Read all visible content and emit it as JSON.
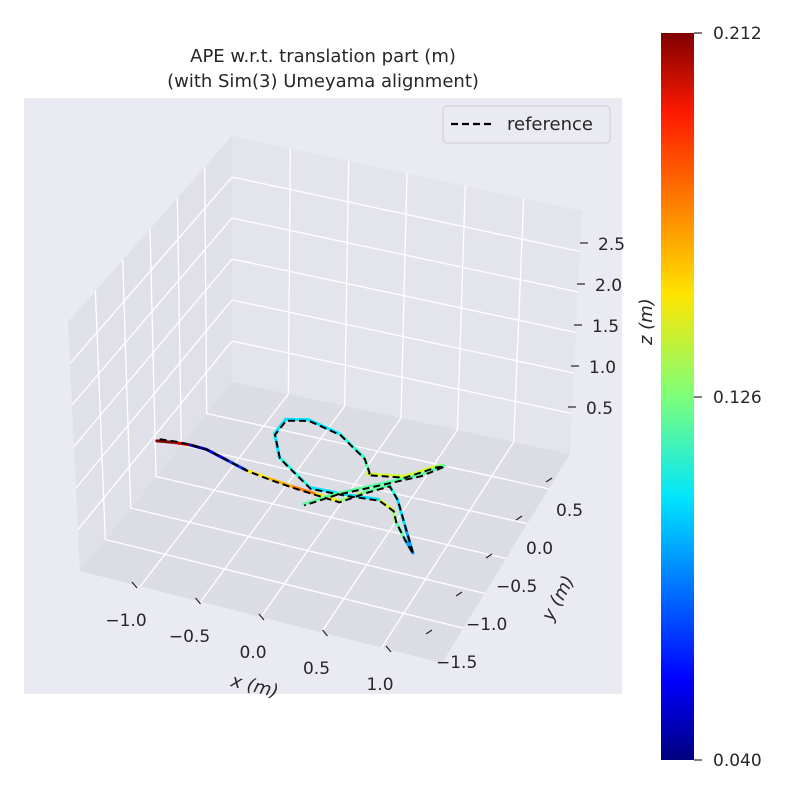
{
  "chart_data": {
    "type": "line",
    "projection": "3d",
    "title": [
      "APE w.r.t. translation part (m)",
      "(with Sim(3) Umeyama alignment)"
    ],
    "xlabel": "x (m)",
    "ylabel": "y (m)",
    "zlabel": "z (m)",
    "x_ticks": [
      "−1.0",
      "−0.5",
      "0.0",
      "0.5",
      "1.0"
    ],
    "y_ticks": [
      "0.5",
      "0.0",
      "−0.5",
      "−1.0",
      "−1.5"
    ],
    "z_ticks": [
      "2.5",
      "2.0",
      "1.5",
      "1.0",
      "0.5"
    ],
    "xlim": [
      -1.5,
      1.3
    ],
    "ylim": [
      -1.8,
      0.9
    ],
    "zlim": [
      0.3,
      2.8
    ],
    "legend": {
      "label": "reference",
      "style": "dashed",
      "color": "#000000",
      "placement": "top-right"
    },
    "colorbar": {
      "min": 0.04,
      "max": 0.212,
      "tick_labels": [
        "0.212",
        "0.126",
        "0.040"
      ],
      "colormap": "jet",
      "label": ""
    },
    "grid": true,
    "background": "#eaeaf2",
    "series": [
      {
        "role": "estimate",
        "colored_by": "APE",
        "points": [
          [
            -1.45,
            -0.35,
            0.75,
            0.212
          ],
          [
            -1.3,
            -0.3,
            0.82,
            0.2
          ],
          [
            -1.15,
            -0.25,
            0.88,
            0.05
          ],
          [
            -1.0,
            -0.2,
            0.92,
            0.06
          ],
          [
            -0.8,
            -0.1,
            0.95,
            0.07
          ],
          [
            -0.6,
            0.0,
            0.98,
            0.15
          ],
          [
            -0.4,
            0.05,
            1.0,
            0.16
          ],
          [
            -0.2,
            0.1,
            1.02,
            0.17
          ],
          [
            0.0,
            0.15,
            1.05,
            0.15
          ],
          [
            0.2,
            0.2,
            1.08,
            0.13
          ],
          [
            0.35,
            0.1,
            1.15,
            0.12
          ],
          [
            0.5,
            0.0,
            1.2,
            0.11
          ],
          [
            0.65,
            0.2,
            1.25,
            0.1
          ],
          [
            0.8,
            0.4,
            1.15,
            0.09
          ],
          [
            0.9,
            0.5,
            1.0,
            0.09
          ],
          [
            0.75,
            0.3,
            0.95,
            0.12
          ],
          [
            0.55,
            0.0,
            0.85,
            0.13
          ],
          [
            0.4,
            -0.3,
            0.7,
            0.14
          ],
          [
            0.2,
            -0.5,
            0.6,
            0.1
          ],
          [
            0.0,
            -0.4,
            0.65,
            0.1
          ],
          [
            -0.2,
            -0.2,
            0.8,
            0.11
          ],
          [
            -0.35,
            0.0,
            1.2,
            0.1
          ],
          [
            -0.3,
            0.2,
            1.6,
            0.1
          ],
          [
            -0.15,
            0.35,
            1.9,
            0.1
          ],
          [
            0.05,
            0.4,
            2.0,
            0.1
          ],
          [
            0.25,
            0.3,
            1.85,
            0.11
          ],
          [
            0.35,
            0.1,
            1.5,
            0.12
          ],
          [
            0.3,
            -0.1,
            1.2,
            0.13
          ],
          [
            0.2,
            -0.3,
            1.0,
            0.14
          ],
          [
            0.4,
            -0.5,
            0.9,
            0.14
          ],
          [
            0.6,
            -0.6,
            1.0,
            0.13
          ],
          [
            0.75,
            -0.4,
            1.2,
            0.12
          ],
          [
            0.7,
            -0.1,
            1.3,
            0.12
          ],
          [
            0.5,
            0.2,
            1.35,
            0.12
          ],
          [
            0.3,
            0.5,
            1.4,
            0.12
          ],
          [
            0.1,
            0.6,
            1.3,
            0.11
          ]
        ]
      },
      {
        "role": "reference",
        "points": [
          [
            -1.45,
            -0.4,
            0.73
          ],
          [
            -1.3,
            -0.34,
            0.8
          ],
          [
            -1.15,
            -0.28,
            0.86
          ],
          [
            -1.0,
            -0.22,
            0.9
          ],
          [
            -0.8,
            -0.12,
            0.93
          ],
          [
            -0.6,
            -0.02,
            0.96
          ],
          [
            -0.4,
            0.04,
            0.98
          ],
          [
            -0.2,
            0.09,
            1.0
          ],
          [
            0.0,
            0.14,
            1.03
          ],
          [
            0.2,
            0.19,
            1.06
          ],
          [
            0.35,
            0.09,
            1.13
          ],
          [
            0.5,
            -0.01,
            1.18
          ],
          [
            0.65,
            0.19,
            1.23
          ],
          [
            0.8,
            0.39,
            1.13
          ],
          [
            0.9,
            0.49,
            0.98
          ],
          [
            0.75,
            0.29,
            0.93
          ],
          [
            0.55,
            -0.01,
            0.83
          ],
          [
            0.4,
            -0.31,
            0.68
          ],
          [
            0.2,
            -0.51,
            0.58
          ],
          [
            0.0,
            -0.41,
            0.63
          ],
          [
            -0.2,
            -0.21,
            0.78
          ],
          [
            -0.35,
            -0.01,
            1.18
          ],
          [
            -0.3,
            0.19,
            1.58
          ],
          [
            -0.15,
            0.34,
            1.88
          ],
          [
            0.05,
            0.39,
            1.98
          ],
          [
            0.25,
            0.29,
            1.83
          ],
          [
            0.35,
            0.09,
            1.48
          ],
          [
            0.3,
            -0.11,
            1.18
          ],
          [
            0.2,
            -0.31,
            0.98
          ],
          [
            0.4,
            -0.51,
            0.88
          ],
          [
            0.6,
            -0.61,
            0.98
          ],
          [
            0.75,
            -0.41,
            1.18
          ],
          [
            0.7,
            -0.11,
            1.28
          ],
          [
            0.5,
            0.19,
            1.33
          ],
          [
            0.3,
            0.49,
            1.38
          ],
          [
            0.1,
            0.59,
            1.28
          ]
        ]
      }
    ]
  }
}
